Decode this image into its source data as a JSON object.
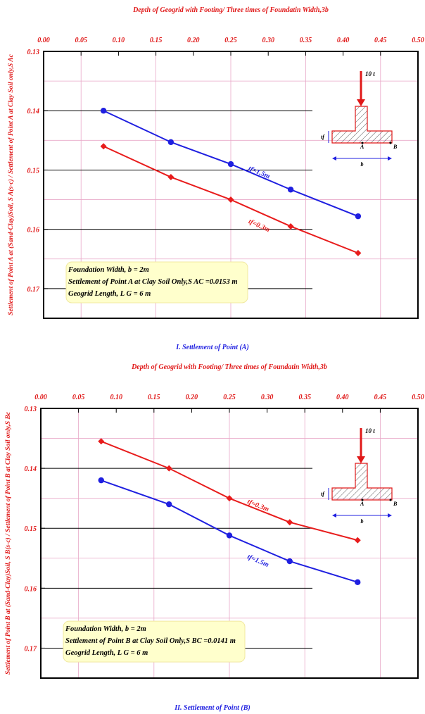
{
  "chart_data": [
    {
      "type": "line",
      "top_title": "Depth of Geogrid with Footing/ Three times of Foundatin Width,3b",
      "ylabel": "Settlement of Point A at (Sand-Clay)Soil, S A(s-c) / Settlement of Point A at Clay Soil only,S Ac",
      "caption": "I. Settlement of Point (A)",
      "xlim": [
        0.0,
        0.5
      ],
      "ylim": [
        0.175,
        0.13
      ],
      "x_ticks": [
        "0.00",
        "0.05",
        "0.10",
        "0.15",
        "0.20",
        "0.25",
        "0.30",
        "0.35",
        "0.40",
        "0.45",
        "0.50"
      ],
      "y_ticks": [
        "0.13",
        "0.14",
        "0.15",
        "0.16",
        "0.17"
      ],
      "y_axis_inverted": true,
      "grid": true,
      "series": [
        {
          "name": "tf=1.5m",
          "color": "#1f1fe0",
          "marker": "circle",
          "x": [
            0.08,
            0.17,
            0.25,
            0.33,
            0.42
          ],
          "y": [
            0.14,
            0.1453,
            0.149,
            0.1533,
            0.1578
          ]
        },
        {
          "name": "tf=0.3m",
          "color": "#e81c1c",
          "marker": "diamond",
          "x": [
            0.08,
            0.17,
            0.25,
            0.33,
            0.42
          ],
          "y": [
            0.146,
            0.1512,
            0.155,
            0.1595,
            0.164
          ]
        }
      ],
      "info_box": [
        "Foundation Width, b    = 2m",
        "Settlement of Point A at Clay Soil Only,S AC =0.0153 m",
        "Geogrid Length, L G   = 6 m"
      ],
      "inset": {
        "load": "10 t",
        "tf": "tf",
        "point_a": "A",
        "point_b": "B",
        "width": "b"
      }
    },
    {
      "type": "line",
      "top_title": "Depth of Geogrid with Footing/ Three times of Foundatin Width,3b",
      "ylabel": "Settlement of Point B at (Sand-Clay)Soil, S B(s-c) / Settlement of Point B at Clay Soil only,S Bc",
      "caption": "II. Settlement of Point (B)",
      "xlim": [
        0.0,
        0.5
      ],
      "ylim": [
        0.175,
        0.13
      ],
      "x_ticks": [
        "0.00",
        "0.05",
        "0.10",
        "0.15",
        "0.20",
        "0.25",
        "0.30",
        "0.35",
        "0.40",
        "0.45",
        "0.50"
      ],
      "y_ticks": [
        "0.13",
        "0.14",
        "0.15",
        "0.16",
        "0.17"
      ],
      "y_axis_inverted": true,
      "grid": true,
      "series": [
        {
          "name": "tf=0.3m",
          "color": "#e81c1c",
          "marker": "diamond",
          "x": [
            0.08,
            0.17,
            0.25,
            0.33,
            0.42
          ],
          "y": [
            0.1355,
            0.14,
            0.145,
            0.149,
            0.152
          ]
        },
        {
          "name": "tf=1.5m",
          "color": "#1f1fe0",
          "marker": "circle",
          "x": [
            0.08,
            0.17,
            0.25,
            0.33,
            0.42
          ],
          "y": [
            0.142,
            0.146,
            0.1512,
            0.1555,
            0.159
          ]
        }
      ],
      "info_box": [
        "Foundation Width, b    = 2m",
        "Settlement of Point B at Clay Soil Only,S BC =0.0141 m",
        "Geogrid Length, L G   = 6 m"
      ],
      "inset": {
        "load": "10 t",
        "tf": "tf",
        "point_a": "A",
        "point_b": "B",
        "width": "b"
      }
    }
  ]
}
